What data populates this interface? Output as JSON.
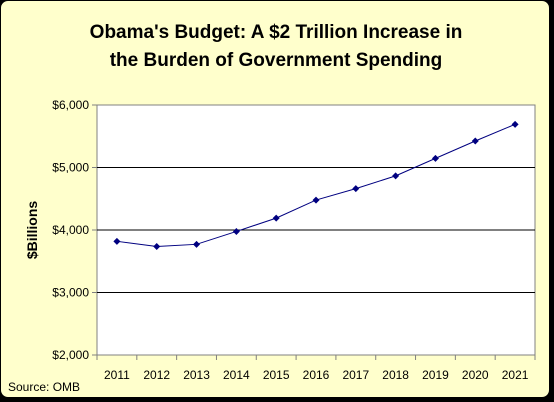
{
  "chart_data": {
    "type": "line",
    "title_line1": "Obama's Budget: A $2 Trillion Increase in",
    "title_line2": "the Burden of Government Spending",
    "ylabel": "$Billions",
    "source": "Source: OMB",
    "x": [
      "2011",
      "2012",
      "2013",
      "2014",
      "2015",
      "2016",
      "2017",
      "2018",
      "2019",
      "2020",
      "2021"
    ],
    "series": [
      {
        "values": [
          3819,
          3737,
          3771,
          3977,
          4190,
          4479,
          4662,
          4866,
          5146,
          5424,
          5691
        ]
      }
    ],
    "ylim": [
      2000,
      6000
    ],
    "yticks": [
      2000,
      3000,
      4000,
      5000,
      6000
    ],
    "ytick_labels": [
      "$2,000",
      "$3,000",
      "$4,000",
      "$5,000",
      "$6,000"
    ],
    "grid": "horizontal",
    "line_color": "#000080",
    "background_color": "#FFFFCC",
    "plot_background": "#FFFFFF"
  }
}
